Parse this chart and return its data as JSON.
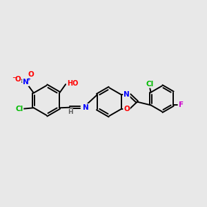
{
  "bg_color": "#e8e8e8",
  "bond_color": "#000000",
  "atom_colors": {
    "N": "#0000ff",
    "O": "#ff0000",
    "Cl": "#00bb00",
    "F": "#cc00cc",
    "H": "#606060",
    "C": "#000000"
  },
  "figsize": [
    3.0,
    3.0
  ],
  "dpi": 100
}
